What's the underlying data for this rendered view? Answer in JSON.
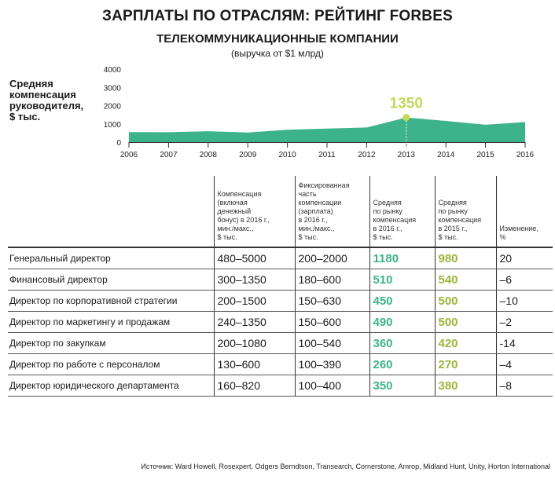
{
  "page": {
    "title": "ЗАРПЛАТЫ ПО ОТРАСЛЯМ: РЕЙТИНГ FORBES",
    "subtitle": "ТЕЛЕКОММУНИКАЦИОННЫЕ КОМПАНИИ",
    "subnote": "(выручка от $1 млрд)",
    "source": "Источник: Ward Howell, Rosexpert, Odgers Berndtson, Transearch, Cornerstone, Amrop, Midland Hunt, Unity, Horton International"
  },
  "chart_data": {
    "type": "area",
    "title": "ТЕЛЕКОММУНИКАЦИОННЫЕ КОМПАНИИ",
    "ylabel": "Средняя\nкомпенсация\nруководителя,\n$ тыс.",
    "x": [
      2006,
      2007,
      2008,
      2009,
      2010,
      2011,
      2012,
      2013,
      2014,
      2015,
      2016
    ],
    "x_tick_labels": [
      "2006",
      "2007",
      "2008",
      "2009",
      "2010",
      "2011",
      "2012",
      "2013",
      "2014",
      "2015",
      "2016"
    ],
    "y": [
      550,
      540,
      600,
      530,
      680,
      740,
      800,
      1350,
      1160,
      950,
      1100
    ],
    "ylim": [
      0,
      4000
    ],
    "y_ticks": [
      0,
      1000,
      2000,
      3000,
      4000
    ],
    "y_tick_labels": [
      "0",
      "1000",
      "2000",
      "3000",
      "4000"
    ],
    "annotation": {
      "x": 2013,
      "y": 1350,
      "label": "1350"
    },
    "grid": false,
    "colors": {
      "area": "#3cb38a",
      "annotation": "#c5d85a",
      "axis": "#333333"
    }
  },
  "table": {
    "headers": [
      "",
      "Компенсация\n(включая\nденежный\nбонус) в 2016 г.,\nмин./макс.,\n$ тыс.",
      "Фиксированная\nчасть\nкомпенсации\n(зарплата)\nв 2016 г.,\nмин./макс.,\n$ тыс.",
      "Средняя\nпо рынку\nкомпенсация\nв 2016 г.,\n$ тыс.",
      "Средняя\nпо рынку\nкомпенсация\nв 2015 г.,\n$ тыс.",
      "Изменение,\n%"
    ],
    "rows": [
      [
        "Генеральный директор",
        "480–5000",
        "200–2000",
        "1180",
        "980",
        "20"
      ],
      [
        "Финансовый директор",
        "300–1350",
        "180–600",
        "510",
        "540",
        "–6"
      ],
      [
        "Директор по корпоративной стратегии",
        "200–1500",
        "150–630",
        "450",
        "500",
        "–10"
      ],
      [
        "Директор по маркетингу и продажам",
        "240–1350",
        "150–600",
        "490",
        "500",
        "–2"
      ],
      [
        "Директор по закупкам",
        "200–1080",
        "100–540",
        "360",
        "420",
        "-14"
      ],
      [
        "Директор по работе с персоналом",
        "130–600",
        "100–390",
        "260",
        "270",
        "–4"
      ],
      [
        "Директор юридического департамента",
        "160–820",
        "100–400",
        "350",
        "380",
        "–8"
      ]
    ]
  }
}
